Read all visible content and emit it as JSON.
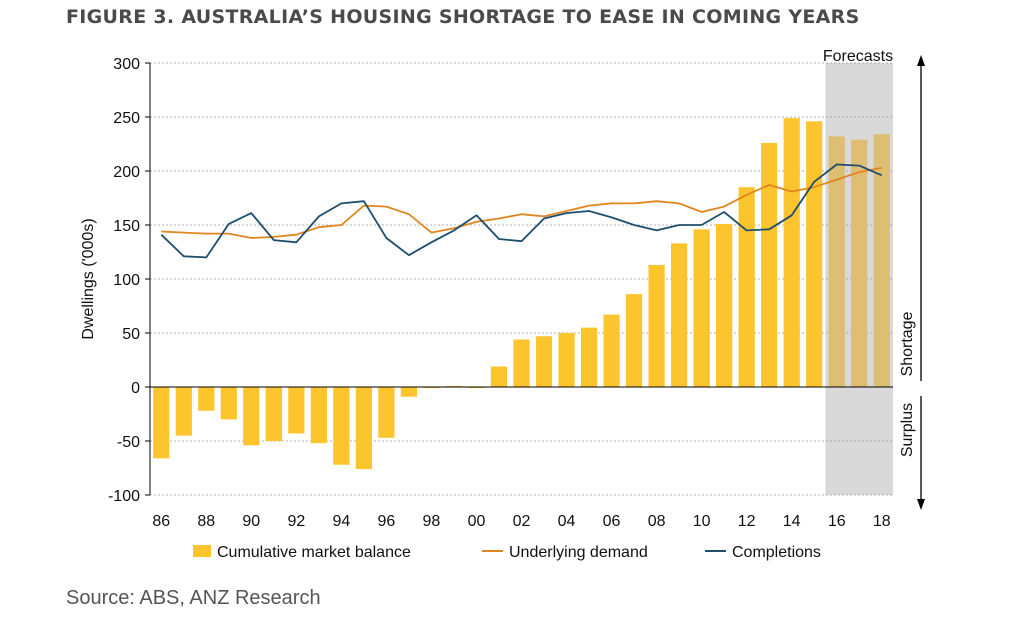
{
  "title": "FIGURE 3. AUSTRALIA’S HOUSING SHORTAGE TO EASE IN COMING YEARS",
  "source": "Source: ABS, ANZ Research",
  "colors": {
    "bars": "#FCC52E",
    "forecast_bars": "#DDBE73",
    "demand": "#E0861F",
    "completions": "#1E4E6E",
    "forecast_band": "#D9D9D9"
  },
  "chart_data": {
    "type": "bar",
    "title": "FIGURE 3. AUSTRALIA’S HOUSING SHORTAGE TO EASE IN COMING YEARS",
    "ylabel": "Dwellings ('000s)",
    "ylim": [
      -100,
      300
    ],
    "yticks": [
      "300",
      "250",
      "200",
      "150",
      "100",
      "50",
      "0",
      "-50",
      "-100"
    ],
    "xtick_labels": [
      "86",
      "88",
      "90",
      "92",
      "94",
      "96",
      "98",
      "00",
      "02",
      "04",
      "06",
      "08",
      "10",
      "12",
      "14",
      "16",
      "18"
    ],
    "categories": [
      "86",
      "87",
      "88",
      "89",
      "90",
      "91",
      "92",
      "93",
      "94",
      "95",
      "96",
      "97",
      "98",
      "99",
      "00",
      "01",
      "02",
      "03",
      "04",
      "05",
      "06",
      "07",
      "08",
      "09",
      "10",
      "11",
      "12",
      "13",
      "14",
      "15",
      "16",
      "17",
      "18"
    ],
    "forecast_label": "Forecasts",
    "forecast_from": "16",
    "side_labels": {
      "shortage": "Shortage",
      "surplus": "Surplus"
    },
    "grid": "horizontal dashed",
    "legend_position": "bottom",
    "series": [
      {
        "name": "Cumulative market balance",
        "type": "bar",
        "values": [
          -66,
          -45,
          -22,
          -30,
          -54,
          -50,
          -43,
          -52,
          -72,
          -76,
          -47,
          -9,
          -1,
          1,
          -1,
          19,
          44,
          47,
          50,
          55,
          67,
          86,
          113,
          133,
          146,
          151,
          185,
          226,
          249,
          246,
          232,
          229,
          234
        ]
      },
      {
        "name": "Underlying demand",
        "type": "line",
        "values": [
          144,
          143,
          142,
          142,
          138,
          139,
          141,
          148,
          150,
          168,
          167,
          160,
          143,
          147,
          153,
          156,
          160,
          158,
          163,
          168,
          170,
          170,
          172,
          170,
          162,
          167,
          178,
          187,
          181,
          185,
          192,
          199,
          203
        ]
      },
      {
        "name": "Completions",
        "type": "line",
        "values": [
          141,
          121,
          120,
          151,
          161,
          136,
          134,
          158,
          170,
          172,
          138,
          122,
          134,
          145,
          159,
          137,
          135,
          156,
          161,
          163,
          157,
          150,
          145,
          150,
          150,
          162,
          145,
          146,
          159,
          190,
          206,
          205,
          196
        ]
      }
    ]
  }
}
